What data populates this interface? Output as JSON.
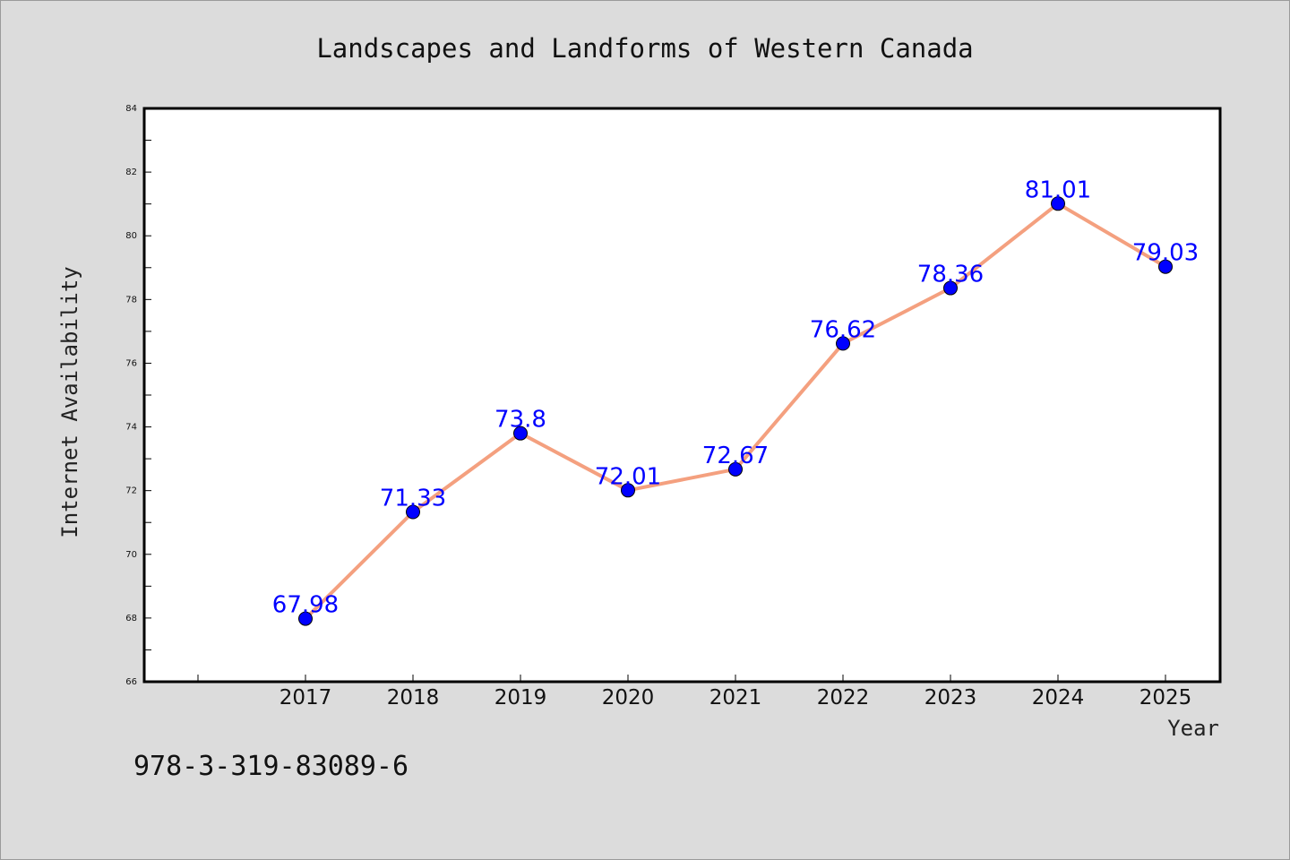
{
  "chart_data": {
    "type": "line",
    "title": "Landscapes and Landforms of Western Canada",
    "xlabel": "Year",
    "ylabel": "Internet Availability",
    "x": [
      "2017",
      "2018",
      "2019",
      "2020",
      "2021",
      "2022",
      "2023",
      "2024",
      "2025"
    ],
    "series": [
      {
        "values": [
          67.98,
          71.33,
          73.8,
          72.01,
          72.67,
          76.62,
          78.36,
          81.01,
          79.03
        ],
        "labels": [
          "67.98",
          "71.33",
          "73.8",
          "72.01",
          "72.67",
          "76.62",
          "78.36",
          "81.01",
          "79.03"
        ]
      }
    ],
    "ylim": [
      66,
      84
    ],
    "yticks": [
      "66",
      "68",
      "70",
      "72",
      "74",
      "76",
      "78",
      "80",
      "82",
      "84"
    ],
    "grid": false,
    "line_color": "#f4a07f",
    "marker_color": "#0000ff",
    "label_color": "#0000ff"
  },
  "footer": {
    "isbn": "978-3-319-83089-6"
  }
}
